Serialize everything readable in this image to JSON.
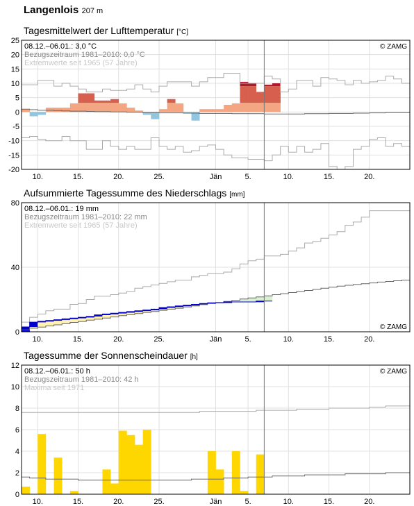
{
  "header": {
    "station": "Langenlois",
    "elevation": "207 m"
  },
  "x_axis": {
    "labels": [
      "10.",
      "15.",
      "20.",
      "25.",
      "Jän",
      "5.",
      "10.",
      "15.",
      "20."
    ],
    "label_days": [
      2,
      7,
      12,
      17,
      24,
      28,
      33,
      38,
      43
    ]
  },
  "colors": {
    "temp_warm_light": "#f4a582",
    "temp_warm_mid": "#d6604d",
    "temp_warm_dark": "#b2182b",
    "temp_cold": "#92c5de",
    "precip_bar": "#0000cc",
    "precip_fill_low": "#d9f0d3",
    "precip_fill_high": "#fff2b3",
    "sun_bar": "#ffd700",
    "grid": "#e0e0e0",
    "ref_line": "#666666",
    "extreme_line": "#aaaaaa",
    "today_line": "#777777"
  },
  "chart_data": [
    {
      "type": "bar",
      "title": "Tagesmittelwert der Lufttemperatur",
      "unit": "°C",
      "ylabel": "",
      "ylim": [
        -20,
        25
      ],
      "yticks": [
        -20,
        -15,
        -10,
        -5,
        0,
        5,
        10,
        15,
        20,
        25
      ],
      "grid": true,
      "info": [
        "08.12.–06.01.: 3,0 °C",
        "Bezugszeitraum 1981–2010: 0,0 °C",
        "Extremwerte seit 1965 (57 Jahre)"
      ],
      "copyright": "© ZAMG",
      "days": 48,
      "today_index": 30,
      "series": [
        {
          "name": "Tagesmittel",
          "values": [
            1,
            -1.5,
            -1,
            1.5,
            1.5,
            1.5,
            3,
            6.5,
            6.5,
            4,
            4,
            4.5,
            3,
            1.5,
            0.5,
            -1,
            -2.5,
            1,
            4.5,
            3,
            -0.5,
            -3,
            1,
            1,
            1,
            2.5,
            3,
            10.5,
            10,
            7,
            9.5,
            10
          ]
        },
        {
          "name": "Bezugszeitraum 1981–2010",
          "values": [
            1,
            0.8,
            0.6,
            0.6,
            0.5,
            0.4,
            0.3,
            0.3,
            0.2,
            0.1,
            0.1,
            0,
            0,
            -0.1,
            -0.1,
            -0.2,
            -0.2,
            -0.3,
            -0.3,
            -0.3,
            -0.4,
            -0.4,
            -0.5,
            -0.5,
            -0.5,
            -0.5,
            -0.6,
            -0.6,
            -0.6,
            -0.6,
            -0.7,
            -0.7,
            -0.7,
            -0.7,
            -0.7,
            -0.6,
            -0.6,
            -0.6,
            -0.5,
            -0.5,
            -0.5,
            -0.4,
            -0.4,
            -0.3,
            -0.3,
            -0.2,
            -0.2,
            -0.2
          ]
        },
        {
          "name": "Maximum",
          "values": [
            9.5,
            9.5,
            11,
            11,
            9,
            10,
            9,
            8,
            7,
            7,
            8,
            7.5,
            7.5,
            8,
            9.5,
            8,
            7,
            9,
            10.5,
            10.5,
            10.5,
            9,
            10.5,
            12,
            12,
            13.5,
            13.5,
            10,
            10,
            10,
            12.5,
            11.5,
            7,
            8,
            11,
            11,
            9,
            12,
            11.5,
            11,
            9.5,
            11,
            10,
            10.5,
            11,
            12.5,
            11.5,
            10
          ]
        },
        {
          "name": "Minimum",
          "values": [
            -9,
            -8.5,
            -9.5,
            -10,
            -10,
            -8.5,
            -10,
            -10,
            -13,
            -13,
            -10,
            -12,
            -13,
            -12,
            -13,
            -13,
            -9,
            -12,
            -13,
            -12,
            -14,
            -13.5,
            -12,
            -11.5,
            -13,
            -15,
            -16,
            -16,
            -16.5,
            -16.5,
            -17,
            -15,
            -12,
            -14,
            -12,
            -14,
            -13,
            -11,
            -19,
            -20,
            -19,
            -13,
            -12,
            -9.5,
            -9,
            -12,
            -11,
            -12
          ]
        }
      ]
    },
    {
      "type": "line",
      "title": "Aufsummierte Tagessumme des Niederschlags",
      "unit": "mm",
      "ylabel": "",
      "ylim": [
        0,
        80
      ],
      "yticks": [
        0,
        40,
        80
      ],
      "grid": true,
      "info": [
        "08.12.–06.01.: 19 mm",
        "Bezugszeitraum 1981–2010: 22 mm",
        "Extremwerte seit 1965 (57 Jahre)"
      ],
      "copyright": "© ZAMG",
      "days": 48,
      "today_index": 30,
      "series": [
        {
          "name": "Summe",
          "values": [
            3,
            6,
            6.5,
            7,
            7.5,
            8,
            8.5,
            9,
            9.5,
            10.5,
            11,
            11.5,
            12,
            12.5,
            13,
            13.5,
            14,
            15,
            15.5,
            16,
            16.5,
            17,
            17.5,
            18,
            18,
            18.5,
            18.5,
            18.5,
            18.5,
            19,
            19
          ]
        },
        {
          "name": "Bezugszeitraum 1981–2010",
          "values": [
            1.2,
            2.2,
            2.9,
            3.6,
            4.3,
            5,
            5.8,
            6.4,
            7.2,
            7.8,
            8.5,
            9.2,
            10,
            10.6,
            11.3,
            12,
            12.6,
            13.3,
            14,
            14.6,
            15.4,
            16,
            16.8,
            17.5,
            18.2,
            18.8,
            19.5,
            20.3,
            21,
            21.6,
            22.3,
            23,
            23.6,
            24.3,
            25,
            25.6,
            26.3,
            27,
            27.6,
            28.3,
            28.8,
            29.3,
            29.8,
            30.3,
            30.8,
            31.2,
            31.6,
            32
          ]
        },
        {
          "name": "Maximum",
          "values": [
            6,
            9,
            11,
            13,
            14,
            14,
            17,
            17.5,
            20,
            22,
            22,
            23,
            24,
            25,
            27,
            28,
            29,
            30,
            31,
            32,
            32,
            34,
            35,
            36,
            36,
            37,
            39,
            42,
            44,
            45,
            47,
            47,
            48,
            50,
            52,
            55,
            56,
            58,
            60,
            62,
            66,
            68,
            71,
            75,
            75,
            75,
            75,
            75
          ]
        },
        {
          "name": "Minimum",
          "values": [
            0,
            0,
            0,
            0,
            0,
            0,
            0,
            0,
            0,
            0,
            0,
            0,
            0,
            0,
            0,
            0,
            0,
            0,
            0,
            0,
            0,
            0,
            0,
            0,
            0,
            0,
            0,
            0,
            0,
            0,
            0,
            0,
            0,
            0,
            0,
            0,
            0,
            0,
            0,
            0,
            0,
            0,
            0,
            0,
            0,
            0,
            0,
            0
          ]
        }
      ]
    },
    {
      "type": "bar",
      "title": "Tagessumme der Sonnenscheindauer",
      "unit": "h",
      "ylabel": "",
      "ylim": [
        0,
        12
      ],
      "yticks": [
        0,
        2,
        4,
        6,
        8,
        10,
        12
      ],
      "grid": true,
      "info": [
        "08.12.–06.01.: 50 h",
        "Bezugszeitraum 1981–2010: 42 h",
        "Maxima seit 1971"
      ],
      "copyright": "© ZAMG",
      "days": 48,
      "today_index": 30,
      "series": [
        {
          "name": "Sonnenscheindauer",
          "values": [
            0.7,
            0,
            5.6,
            0,
            3.4,
            0,
            0.3,
            0,
            0,
            0,
            2.3,
            1,
            5.9,
            5.5,
            4.6,
            6,
            0,
            0,
            0,
            0,
            0,
            0,
            0,
            4,
            2.3,
            0,
            4,
            0.3,
            0,
            3.7
          ]
        },
        {
          "name": "Bezugszeitraum 1981–2010",
          "values": [
            1.6,
            1.5,
            1.5,
            1.4,
            1.4,
            1.4,
            1.4,
            1.3,
            1.3,
            1.3,
            1.3,
            1.3,
            1.3,
            1.3,
            1.3,
            1.3,
            1.3,
            1.3,
            1.3,
            1.3,
            1.3,
            1.4,
            1.4,
            1.4,
            1.4,
            1.5,
            1.5,
            1.5,
            1.6,
            1.6,
            1.6,
            1.7,
            1.7,
            1.7,
            1.7,
            1.8,
            1.8,
            1.8,
            1.8,
            1.8,
            1.9,
            1.9,
            1.9,
            1.9,
            1.9,
            2,
            2,
            2
          ]
        },
        {
          "name": "Maxima",
          "values": [
            7.6,
            7.6,
            7.6,
            7.6,
            7.6,
            7.6,
            7.6,
            7.6,
            7.6,
            7.6,
            7.6,
            7.6,
            7.6,
            7.6,
            7.6,
            7.6,
            7.6,
            7.6,
            7.6,
            7.6,
            7.6,
            7.6,
            7.7,
            7.7,
            7.7,
            7.7,
            7.7,
            7.7,
            7.7,
            7.8,
            7.8,
            7.8,
            7.8,
            7.8,
            7.9,
            7.9,
            7.9,
            7.9,
            8,
            8,
            8,
            8,
            8,
            8.1,
            8.1,
            8.2,
            8.2,
            8.2
          ]
        }
      ]
    }
  ]
}
